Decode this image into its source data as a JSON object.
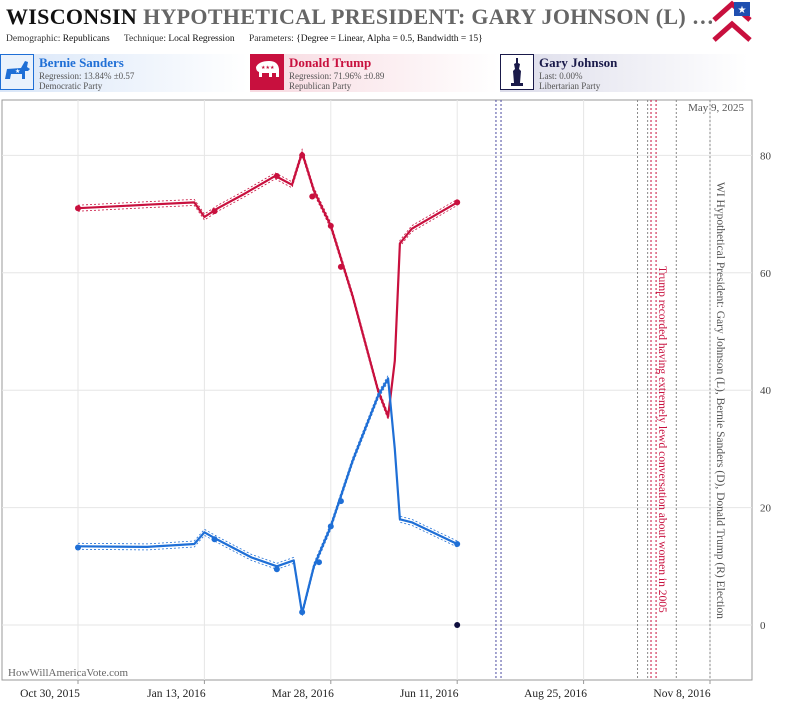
{
  "header": {
    "title_state": "WISCONSIN",
    "title_rest": "HYPOTHETICAL PRESIDENT:  GARY JOHNSON (L) …",
    "demographic_label": "Demographic:",
    "demographic_value": "Republicans",
    "technique_label": "Technique:",
    "technique_value": "Local Regression",
    "parameters_label": "Parameters:",
    "parameters_value": "{Degree = Linear, Alpha = 0.5, Bandwidth = 15}"
  },
  "candidates": [
    {
      "name": "Bernie Sanders",
      "stat": "Regression: 13.84% ±0.57",
      "party": "Democratic Party",
      "color": "#1f6fd6",
      "icon": "donkey-icon"
    },
    {
      "name": "Donald Trump",
      "stat": "Regression: 71.96% ±0.89",
      "party": "Republican Party",
      "color": "#c8103e",
      "icon": "elephant-icon"
    },
    {
      "name": "Gary Johnson",
      "stat": "Last: 0.00%",
      "party": "Libertarian Party",
      "color": "#1a1a4a",
      "icon": "liberty-icon"
    }
  ],
  "chart_data": {
    "type": "line",
    "title": "",
    "xlabel": "",
    "ylabel": "",
    "x_ticks": [
      "Oct 30, 2015",
      "Jan 13, 2016",
      "Mar 28, 2016",
      "Jun 11, 2016",
      "Aug 25, 2016",
      "Nov 8, 2016"
    ],
    "y_ticks": [
      0,
      20,
      40,
      60,
      80
    ],
    "ylim": [
      -10,
      90
    ],
    "grid": true,
    "date_label": "May 9, 2025",
    "watermark": "HowWillAmericaVote.com",
    "vertical_caption": "WI Hypothetical President: Gary Johnson (L), Bernie Sanders (D), Donald Trump (R) Election",
    "annotation": "Trump recorded having extremely lewd conversation about women in 2005",
    "series": [
      {
        "name": "Donald Trump",
        "color": "#c8103e",
        "points": [
          [
            "2015-10-30",
            71
          ],
          [
            "2016-01-19",
            70.5
          ],
          [
            "2016-02-25",
            76.5
          ],
          [
            "2016-03-11",
            80
          ],
          [
            "2016-03-17",
            73
          ],
          [
            "2016-03-28",
            68
          ],
          [
            "2016-04-03",
            61
          ],
          [
            "2016-06-11",
            72
          ]
        ],
        "line": [
          [
            "2015-10-30",
            71
          ],
          [
            "2015-12-10",
            71.6
          ],
          [
            "2016-01-07",
            72
          ],
          [
            "2016-01-13",
            69.5
          ],
          [
            "2016-01-21",
            71
          ],
          [
            "2016-02-06",
            73.5
          ],
          [
            "2016-02-24",
            76.5
          ],
          [
            "2016-03-05",
            75
          ],
          [
            "2016-03-11",
            80.5
          ],
          [
            "2016-03-18",
            74
          ],
          [
            "2016-03-28",
            68
          ],
          [
            "2016-04-10",
            56
          ],
          [
            "2016-04-25",
            40
          ],
          [
            "2016-05-01",
            35.5
          ],
          [
            "2016-05-05",
            45
          ],
          [
            "2016-05-08",
            65
          ],
          [
            "2016-05-15",
            67.5
          ],
          [
            "2016-06-11",
            72
          ]
        ]
      },
      {
        "name": "Bernie Sanders",
        "color": "#1f6fd6",
        "points": [
          [
            "2015-10-30",
            13.2
          ],
          [
            "2016-01-19",
            14.6
          ],
          [
            "2016-02-25",
            9.5
          ],
          [
            "2016-03-11",
            2.2
          ],
          [
            "2016-03-21",
            10.7
          ],
          [
            "2016-03-28",
            16.8
          ],
          [
            "2016-04-03",
            21.1
          ],
          [
            "2016-06-11",
            13.8
          ]
        ],
        "line": [
          [
            "2015-10-30",
            13.4
          ],
          [
            "2015-12-10",
            13.3
          ],
          [
            "2016-01-07",
            13.8
          ],
          [
            "2016-01-13",
            15.8
          ],
          [
            "2016-01-21",
            14.5
          ],
          [
            "2016-02-10",
            11.5
          ],
          [
            "2016-02-25",
            10
          ],
          [
            "2016-03-06",
            11
          ],
          [
            "2016-03-11",
            2
          ],
          [
            "2016-03-18",
            10
          ],
          [
            "2016-03-28",
            16.8
          ],
          [
            "2016-04-10",
            28
          ],
          [
            "2016-04-25",
            39
          ],
          [
            "2016-05-01",
            42
          ],
          [
            "2016-05-05",
            30
          ],
          [
            "2016-05-08",
            18
          ],
          [
            "2016-05-15",
            17.5
          ],
          [
            "2016-06-11",
            13.8
          ]
        ]
      },
      {
        "name": "Gary Johnson",
        "color": "#0d0d3d",
        "points": [
          [
            "2016-06-11",
            0
          ]
        ],
        "line": []
      }
    ],
    "events": [
      {
        "date": "2016-07-04",
        "color": "#4a4aa0",
        "style": "dotted"
      },
      {
        "date": "2016-07-07",
        "color": "#4a4aa0",
        "style": "dotted"
      },
      {
        "date": "2016-09-26",
        "color": "#888888",
        "style": "dotted"
      },
      {
        "date": "2016-10-02",
        "color": "#888888",
        "style": "dotted"
      },
      {
        "date": "2016-10-04",
        "color": "#c8103e",
        "style": "dotted"
      },
      {
        "date": "2016-10-07",
        "color": "#c8103e",
        "style": "dotted"
      },
      {
        "date": "2016-10-19",
        "color": "#888888",
        "style": "dotted"
      },
      {
        "date": "2016-11-08",
        "color": "#888888",
        "style": "dotted"
      }
    ]
  }
}
